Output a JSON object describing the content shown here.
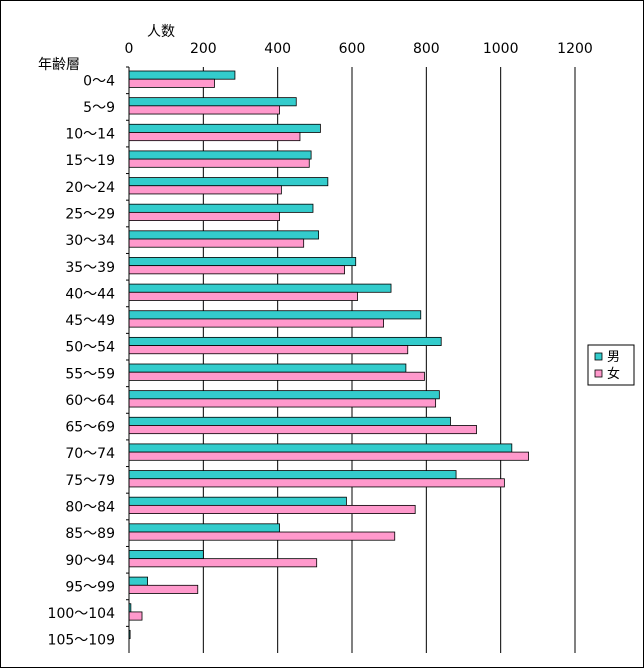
{
  "chart_data": {
    "type": "bar",
    "orientation": "horizontal",
    "xlabel": "人数",
    "ylabel": "年齢層",
    "xlim": [
      0,
      1200
    ],
    "xticks": [
      0,
      200,
      400,
      600,
      800,
      1000,
      1200
    ],
    "grid": true,
    "legend_position": "right",
    "categories": [
      "0〜4",
      "5〜9",
      "10〜14",
      "15〜19",
      "20〜24",
      "25〜29",
      "30〜34",
      "35〜39",
      "40〜44",
      "45〜49",
      "50〜54",
      "55〜59",
      "60〜64",
      "65〜69",
      "70〜74",
      "75〜79",
      "80〜84",
      "85〜89",
      "90〜94",
      "95〜99",
      "100〜104",
      "105〜109"
    ],
    "series": [
      {
        "name": "男",
        "color": "#33CCCC",
        "values": [
          285,
          450,
          515,
          490,
          535,
          495,
          510,
          610,
          705,
          785,
          840,
          745,
          835,
          865,
          1030,
          880,
          585,
          405,
          200,
          50,
          5,
          3
        ]
      },
      {
        "name": "女",
        "color": "#FF99CC",
        "values": [
          230,
          405,
          460,
          485,
          410,
          405,
          470,
          580,
          615,
          685,
          750,
          795,
          825,
          935,
          1075,
          1010,
          770,
          715,
          505,
          185,
          35,
          0
        ]
      }
    ]
  }
}
